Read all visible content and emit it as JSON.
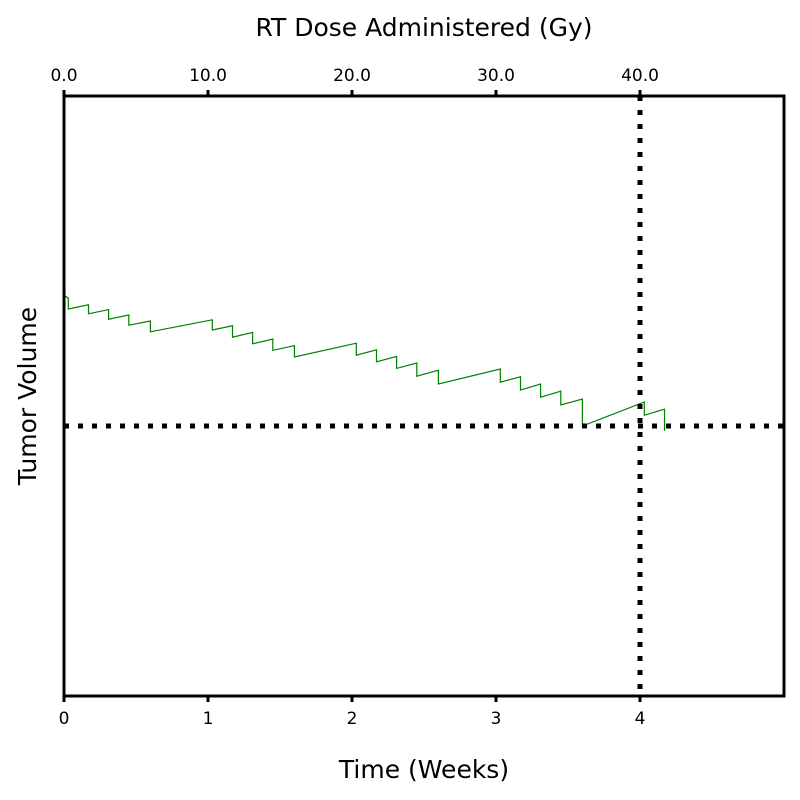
{
  "chart_data": {
    "type": "line",
    "xlabel": "Time (Weeks)",
    "ylabel": "Tumor Volume",
    "top_xlabel": "RT Dose Administered (Gy)",
    "xlim": [
      0,
      5
    ],
    "ylim": [
      0,
      1
    ],
    "bottom_ticks": [
      "0",
      "1",
      "2",
      "3",
      "4"
    ],
    "top_ticks": [
      "0.0",
      "10.0",
      "20.0",
      "30.0",
      "40.0"
    ],
    "y_ticks_shown": false,
    "grid": false,
    "reference_lines": {
      "vertical_x": 4,
      "horizontal_y": 0.45,
      "style": "dotted",
      "color": "#000000"
    },
    "series": [
      {
        "color": "#008000",
        "x": [
          0,
          0.03,
          0.03,
          0.17,
          0.17,
          0.31,
          0.31,
          0.45,
          0.45,
          0.6,
          0.6,
          1.03,
          1.03,
          1.17,
          1.17,
          1.31,
          1.31,
          1.45,
          1.45,
          1.6,
          1.6,
          2.03,
          2.03,
          2.17,
          2.17,
          2.31,
          2.31,
          2.45,
          2.45,
          2.6,
          2.6,
          3.03,
          3.03,
          3.17,
          3.17,
          3.31,
          3.31,
          3.45,
          3.45,
          3.6,
          3.6,
          4.03,
          4.03,
          4.17,
          4.17
        ],
        "y": [
          0.668,
          0.663,
          0.645,
          0.652,
          0.637,
          0.644,
          0.628,
          0.635,
          0.618,
          0.625,
          0.607,
          0.627,
          0.61,
          0.617,
          0.598,
          0.606,
          0.587,
          0.595,
          0.576,
          0.584,
          0.565,
          0.588,
          0.568,
          0.577,
          0.557,
          0.566,
          0.546,
          0.555,
          0.533,
          0.543,
          0.52,
          0.545,
          0.523,
          0.532,
          0.51,
          0.52,
          0.498,
          0.508,
          0.485,
          0.495,
          0.45,
          0.49,
          0.468,
          0.478,
          0.442
        ]
      }
    ]
  }
}
